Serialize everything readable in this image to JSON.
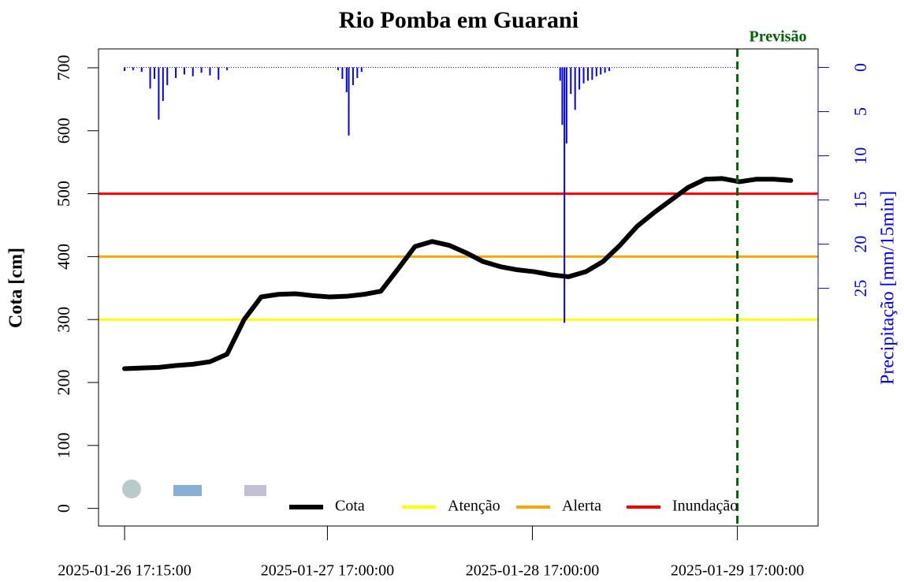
{
  "chart_data": {
    "type": "line",
    "title": "Rio Pomba em Guarani",
    "ylabel": "Cota [cm]",
    "y2label": "Precipitação [mm/15min]",
    "ylim": [
      -28,
      730
    ],
    "yticks": [
      0,
      100,
      200,
      300,
      400,
      500,
      600,
      700
    ],
    "y2lim": [
      -2.1,
      51.9
    ],
    "y2_inverted": true,
    "y2ticks": [
      0,
      5,
      10,
      15,
      20,
      25
    ],
    "xlim": [
      "2025-01-26 14:12:00",
      "2025-01-30 02:27:00"
    ],
    "xticks": [
      "2025-01-26 17:15:00",
      "2025-01-27 17:00:00",
      "2025-01-28 17:00:00",
      "2025-01-29 17:00:00"
    ],
    "series": [
      {
        "name": "Cota",
        "color": "#000000",
        "x": [
          "2025-01-26 17:15:00",
          "2025-01-26 19:15:00",
          "2025-01-26 21:15:00",
          "2025-01-26 23:15:00",
          "2025-01-27 01:15:00",
          "2025-01-27 03:15:00",
          "2025-01-27 05:15:00",
          "2025-01-27 07:15:00",
          "2025-01-27 09:15:00",
          "2025-01-27 11:15:00",
          "2025-01-27 13:15:00",
          "2025-01-27 15:15:00",
          "2025-01-27 17:15:00",
          "2025-01-27 19:15:00",
          "2025-01-27 21:15:00",
          "2025-01-27 23:15:00",
          "2025-01-28 01:15:00",
          "2025-01-28 03:15:00",
          "2025-01-28 05:15:00",
          "2025-01-28 07:15:00",
          "2025-01-28 09:15:00",
          "2025-01-28 11:15:00",
          "2025-01-28 13:15:00",
          "2025-01-28 15:15:00",
          "2025-01-28 17:15:00",
          "2025-01-28 19:15:00",
          "2025-01-28 21:15:00",
          "2025-01-28 23:15:00",
          "2025-01-29 01:15:00",
          "2025-01-29 03:15:00",
          "2025-01-29 05:15:00",
          "2025-01-29 07:15:00",
          "2025-01-29 09:15:00",
          "2025-01-29 11:15:00",
          "2025-01-29 13:15:00",
          "2025-01-29 15:15:00",
          "2025-01-29 17:15:00",
          "2025-01-29 19:15:00",
          "2025-01-29 21:15:00",
          "2025-01-29 23:15:00"
        ],
        "values": [
          222,
          223,
          224,
          227,
          229,
          233,
          245,
          300,
          336,
          340,
          341,
          338,
          336,
          337,
          340,
          345,
          380,
          416,
          424,
          418,
          406,
          392,
          384,
          379,
          376,
          371,
          368,
          376,
          392,
          418,
          448,
          470,
          490,
          510,
          523,
          524,
          519,
          523,
          523,
          521
        ]
      }
    ],
    "precipitation": {
      "color": "#0000ff",
      "axis": "y2",
      "x": [
        "2025-01-26 17:15:00",
        "2025-01-26 18:15:00",
        "2025-01-26 19:15:00",
        "2025-01-26 20:15:00",
        "2025-01-26 20:45:00",
        "2025-01-26 21:15:00",
        "2025-01-26 21:45:00",
        "2025-01-26 22:15:00",
        "2025-01-26 23:15:00",
        "2025-01-27 00:15:00",
        "2025-01-27 01:15:00",
        "2025-01-27 02:15:00",
        "2025-01-27 03:15:00",
        "2025-01-27 04:15:00",
        "2025-01-27 05:15:00",
        "2025-01-27 18:15:00",
        "2025-01-27 18:45:00",
        "2025-01-27 19:15:00",
        "2025-01-27 19:30:00",
        "2025-01-27 20:00:00",
        "2025-01-27 20:30:00",
        "2025-01-27 21:00:00",
        "2025-01-28 20:15:00",
        "2025-01-28 20:30:00",
        "2025-01-28 20:45:00",
        "2025-01-28 21:00:00",
        "2025-01-28 21:30:00",
        "2025-01-28 22:00:00",
        "2025-01-28 22:30:00",
        "2025-01-28 23:00:00",
        "2025-01-28 23:30:00",
        "2025-01-29 00:00:00",
        "2025-01-29 00:30:00",
        "2025-01-29 01:00:00",
        "2025-01-29 01:30:00",
        "2025-01-29 02:00:00"
      ],
      "values": [
        0.4,
        0.3,
        0.5,
        2.4,
        1.3,
        5.9,
        3.8,
        2.0,
        1.2,
        0.8,
        1.0,
        0.6,
        0.9,
        1.4,
        0.3,
        0.3,
        1.3,
        2.8,
        7.7,
        2.0,
        1.2,
        0.5,
        1.5,
        6.5,
        28.9,
        8.6,
        3.0,
        4.8,
        2.5,
        1.8,
        1.5,
        1.4,
        1.0,
        0.8,
        0.6,
        0.4
      ]
    },
    "thresholds": [
      {
        "name": "Atenção",
        "color": "#ffff00",
        "value": 300
      },
      {
        "name": "Alerta",
        "color": "#ffa500",
        "value": 400
      },
      {
        "name": "Inundação",
        "color": "#ff0000",
        "value": 500
      }
    ],
    "forecast": {
      "label": "Previsão",
      "x": "2025-01-29 17:00:00",
      "color": "#006400"
    }
  }
}
